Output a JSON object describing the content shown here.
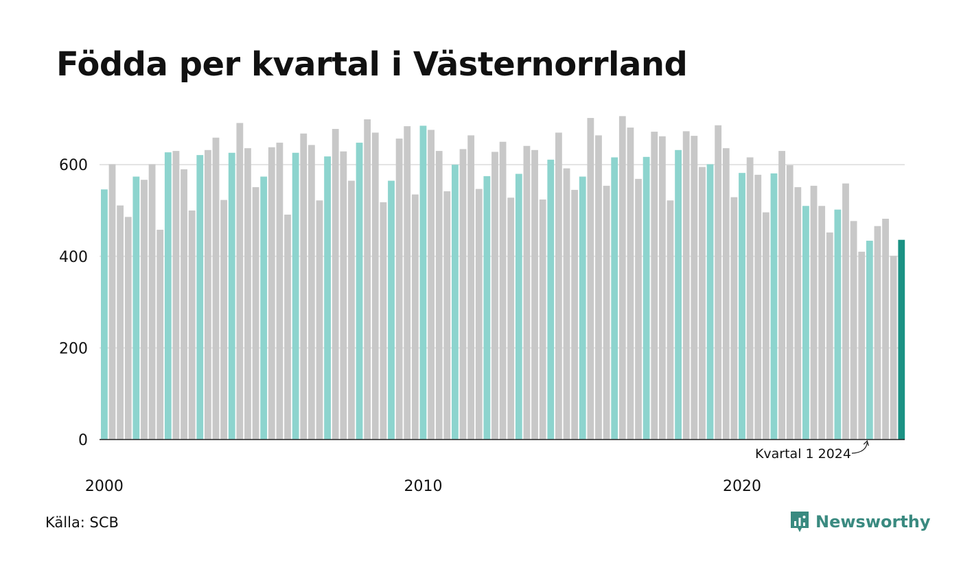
{
  "title": "Födda per kvartal i Västernorrland",
  "source": "Källa: SCB",
  "brand": "Newsworthy",
  "colors": {
    "q1": "#8dd4ce",
    "other": "#c8c8c8",
    "latest": "#1b9284",
    "grid": "#e3e3e3",
    "axis": "#222222",
    "brand": "#3a8a80"
  },
  "chart_data": {
    "type": "bar",
    "title": "Födda per kvartal i Västernorrland",
    "start_year": 2000,
    "start_quarter": 1,
    "highlight": "Kvartal 1",
    "annotation": "Kvartal 1 2024",
    "ylim": [
      0,
      720
    ],
    "yticks": [
      0,
      200,
      400,
      600
    ],
    "xticks": [
      "2000",
      "2010",
      "2020"
    ],
    "grid": true,
    "values": [
      546,
      601,
      511,
      486,
      574,
      567,
      601,
      458,
      627,
      630,
      590,
      500,
      621,
      632,
      659,
      523,
      626,
      691,
      636,
      551,
      574,
      638,
      648,
      491,
      626,
      668,
      643,
      522,
      618,
      678,
      629,
      565,
      648,
      699,
      670,
      518,
      565,
      657,
      684,
      535,
      685,
      676,
      630,
      542,
      600,
      634,
      664,
      547,
      575,
      628,
      650,
      528,
      580,
      641,
      632,
      524,
      611,
      670,
      592,
      545,
      574,
      702,
      664,
      554,
      616,
      706,
      681,
      569,
      617,
      672,
      662,
      522,
      632,
      673,
      663,
      595,
      601,
      686,
      636,
      529,
      582,
      616,
      578,
      496,
      581,
      630,
      599,
      551,
      510,
      554,
      510,
      452,
      502,
      559,
      477,
      410,
      434,
      466,
      482,
      401,
      436
    ]
  }
}
